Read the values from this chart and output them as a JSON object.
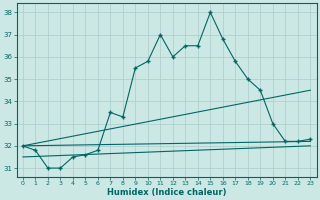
{
  "title": "",
  "xlabel": "Humidex (Indice chaleur)",
  "bg_color": "#cce8e4",
  "grid_color": "#aacccc",
  "line_color": "#006666",
  "xlim": [
    -0.5,
    23.5
  ],
  "ylim": [
    30.6,
    38.4
  ],
  "xticks": [
    0,
    1,
    2,
    3,
    4,
    5,
    6,
    7,
    8,
    9,
    10,
    11,
    12,
    13,
    14,
    15,
    16,
    17,
    18,
    19,
    20,
    21,
    22,
    23
  ],
  "yticks": [
    31,
    32,
    33,
    34,
    35,
    36,
    37,
    38
  ],
  "series1_x": [
    0,
    1,
    2,
    3,
    4,
    5,
    6,
    7,
    8,
    9,
    10,
    11,
    12,
    13,
    14,
    15,
    16,
    17,
    18,
    19,
    20,
    21,
    22,
    23
  ],
  "series1_y": [
    32.0,
    31.8,
    31.0,
    31.0,
    31.5,
    31.6,
    31.8,
    33.5,
    33.3,
    35.5,
    35.8,
    37.0,
    36.0,
    36.5,
    36.5,
    38.0,
    36.8,
    35.8,
    35.0,
    34.5,
    33.0,
    32.2,
    32.2,
    32.3
  ],
  "series2_x": [
    0,
    23
  ],
  "series2_y": [
    32.0,
    34.5
  ],
  "series3_x": [
    0,
    23
  ],
  "series3_y": [
    32.0,
    32.2
  ],
  "series4_x": [
    0,
    23
  ],
  "series4_y": [
    31.5,
    32.0
  ]
}
